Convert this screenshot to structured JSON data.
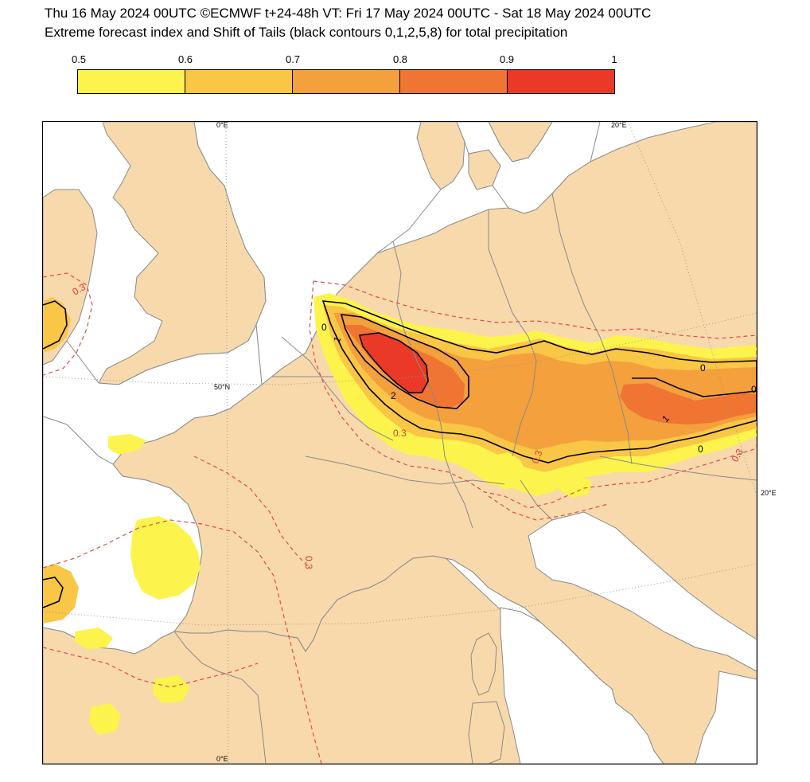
{
  "header": {
    "line1": "Thu 16 May 2024 00UTC ©ECMWF t+24-48h  VT: Fri 17 May 2024 00UTC - Sat 18 May 2024 00UTC",
    "line2": "Extreme forecast index and Shift of Tails (black contours 0,1,2,5,8) for total precipitation"
  },
  "colorbar": {
    "ticks": [
      "0.5",
      "0.6",
      "0.7",
      "0.8",
      "0.9",
      "1"
    ],
    "colors": [
      "#fcf44c",
      "#f9c645",
      "#f4a03c",
      "#f07432",
      "#ea3a27"
    ]
  },
  "map": {
    "land_color": "#f7d9ab",
    "sea_color": "#ffffff",
    "coast_color": "#8a8a8a",
    "grid_labels": {
      "top_0": "0°E",
      "top_20": "20°E",
      "lat_50": "50°N",
      "right_20": "20°E",
      "bottom_0": "0°E"
    },
    "red_contour_labels": [
      "0.3",
      "0.3",
      "0.3",
      "0.3",
      "0.3"
    ],
    "black_contour_labels": [
      "0",
      "1",
      "2",
      "0",
      "1",
      "0",
      "0"
    ]
  }
}
